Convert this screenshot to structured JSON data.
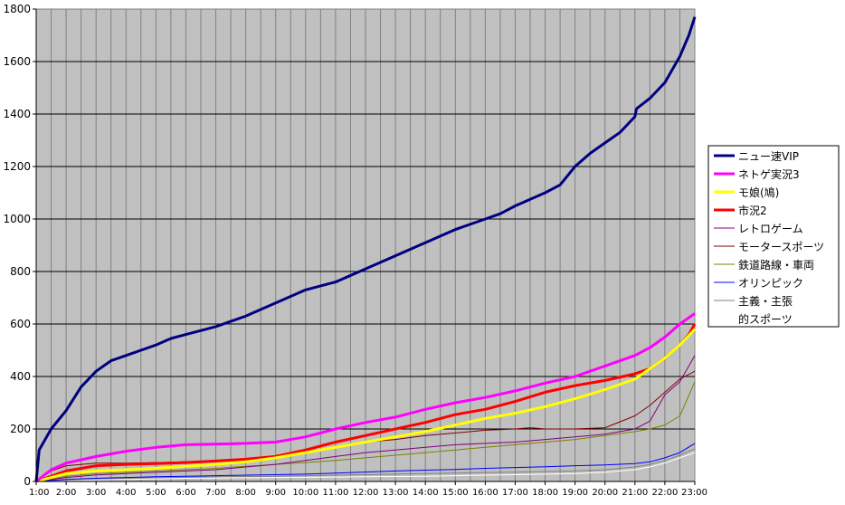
{
  "chart_data": {
    "type": "line",
    "title": "",
    "xlabel": "",
    "ylabel": "",
    "x_ticks": [
      "1:00",
      "2:00",
      "3:00",
      "4:00",
      "5:00",
      "6:00",
      "7:00",
      "8:00",
      "9:00",
      "10:00",
      "11:00",
      "12:00",
      "13:00",
      "14:00",
      "15:00",
      "16:00",
      "17:00",
      "18:00",
      "19:00",
      "20:00",
      "21:00",
      "22:00",
      "23:00"
    ],
    "x_sub_per_tick": 2,
    "xlim": [
      1,
      23
    ],
    "y_ticks": [
      0,
      200,
      400,
      600,
      800,
      1000,
      1200,
      1400,
      1600,
      1800
    ],
    "ylim": [
      0,
      1800
    ],
    "grid": true,
    "plot_background": "#c0c0c0",
    "legend_position": "right",
    "series": [
      {
        "name": "ニュー速VIP",
        "color": "#000080",
        "width": 3,
        "x": [
          1,
          1.1,
          1.5,
          2,
          2.5,
          3,
          3.5,
          4,
          4.5,
          5,
          5.5,
          6,
          7,
          8,
          9,
          10,
          11,
          12,
          13,
          14,
          15,
          16,
          16.5,
          17,
          18,
          18.5,
          19,
          19.5,
          20,
          20.5,
          21,
          21.05,
          21.5,
          22,
          22.5,
          22.8,
          23
        ],
        "y": [
          0,
          120,
          200,
          270,
          360,
          420,
          460,
          480,
          500,
          520,
          545,
          560,
          590,
          630,
          680,
          730,
          760,
          810,
          860,
          910,
          960,
          1000,
          1020,
          1050,
          1100,
          1130,
          1200,
          1250,
          1290,
          1330,
          1390,
          1420,
          1460,
          1520,
          1620,
          1700,
          1770
        ]
      },
      {
        "name": "ネトゲ実況3",
        "color": "#ff00ff",
        "width": 3,
        "x": [
          1,
          1.5,
          2,
          3,
          4,
          5,
          6,
          7,
          8,
          9,
          10,
          11,
          12,
          13,
          14,
          15,
          16,
          17,
          18,
          19,
          20,
          21,
          21.5,
          22,
          22.5,
          23
        ],
        "y": [
          0,
          45,
          70,
          95,
          115,
          130,
          140,
          142,
          145,
          150,
          170,
          200,
          225,
          245,
          275,
          300,
          320,
          345,
          375,
          400,
          440,
          480,
          510,
          550,
          600,
          640
        ]
      },
      {
        "name": "モ娘(鳩)",
        "color": "#ffff00",
        "width": 3,
        "x": [
          1,
          2,
          3,
          4,
          5,
          6,
          7,
          8,
          9,
          10,
          11,
          12,
          13,
          14,
          15,
          16,
          17,
          18,
          19,
          20,
          21,
          21.5,
          22,
          22.5,
          23
        ],
        "y": [
          0,
          30,
          40,
          45,
          50,
          58,
          65,
          75,
          90,
          110,
          130,
          150,
          170,
          190,
          215,
          240,
          260,
          285,
          315,
          350,
          390,
          430,
          470,
          520,
          580
        ]
      },
      {
        "name": "市況2",
        "color": "#ff0000",
        "width": 3,
        "x": [
          1,
          2,
          3,
          4,
          5,
          6,
          7,
          8,
          9,
          10,
          11,
          12,
          13,
          14,
          15,
          16,
          17,
          18,
          19,
          20,
          21,
          21.5,
          22,
          22.5,
          22.8,
          23
        ],
        "y": [
          0,
          40,
          60,
          65,
          68,
          72,
          78,
          85,
          95,
          120,
          150,
          175,
          200,
          225,
          255,
          275,
          305,
          340,
          365,
          385,
          410,
          430,
          470,
          520,
          560,
          600
        ]
      },
      {
        "name": "レトロゲーム",
        "color": "#800080",
        "width": 1,
        "x": [
          1,
          2,
          3,
          4,
          5,
          6,
          7,
          8,
          9,
          10,
          11,
          12,
          13,
          14,
          15,
          16,
          17,
          18,
          19,
          20,
          21,
          21.5,
          22,
          22.5,
          23
        ],
        "y": [
          0,
          15,
          25,
          30,
          35,
          40,
          45,
          55,
          65,
          80,
          95,
          110,
          120,
          130,
          140,
          145,
          150,
          160,
          170,
          180,
          200,
          230,
          330,
          380,
          480
        ]
      },
      {
        "name": "モータースポーツ",
        "color": "#800000",
        "width": 1,
        "x": [
          1,
          1.5,
          2,
          3,
          4,
          5,
          6,
          7,
          8,
          9,
          10,
          11,
          12,
          13,
          14,
          15,
          16,
          17,
          17.5,
          18,
          19,
          20,
          21,
          21.5,
          22,
          22.5,
          23
        ],
        "y": [
          0,
          40,
          60,
          70,
          70,
          72,
          75,
          80,
          85,
          95,
          115,
          130,
          150,
          160,
          175,
          185,
          195,
          200,
          205,
          200,
          200,
          205,
          250,
          290,
          340,
          390,
          420
        ]
      },
      {
        "name": "鉄道路線・車両",
        "color": "#808000",
        "width": 1,
        "x": [
          1,
          2,
          3,
          4,
          5,
          6,
          7,
          8,
          9,
          10,
          11,
          12,
          13,
          14,
          15,
          16,
          17,
          18,
          19,
          20,
          21,
          21.5,
          22,
          22.5,
          23
        ],
        "y": [
          0,
          20,
          30,
          35,
          40,
          45,
          50,
          58,
          65,
          72,
          80,
          90,
          100,
          110,
          120,
          130,
          140,
          150,
          160,
          175,
          190,
          200,
          215,
          250,
          380
        ]
      },
      {
        "name": "オリンピック",
        "color": "#0000ff",
        "width": 1,
        "x": [
          1,
          2,
          3,
          4,
          5,
          6,
          7,
          8,
          9,
          10,
          11,
          12,
          13,
          14,
          15,
          16,
          17,
          18,
          19,
          20,
          21,
          21.5,
          22,
          22.5,
          23
        ],
        "y": [
          0,
          8,
          12,
          15,
          18,
          20,
          22,
          24,
          26,
          28,
          32,
          36,
          40,
          43,
          46,
          50,
          53,
          56,
          60,
          63,
          68,
          75,
          90,
          110,
          145
        ]
      },
      {
        "name": "主義・主張",
        "color": "#808080",
        "width": 1,
        "x": [
          1,
          2,
          3,
          4,
          5,
          6,
          7,
          8,
          9,
          10,
          11,
          12,
          13,
          14,
          15,
          16,
          17,
          18,
          19,
          20,
          21,
          21.5,
          22,
          22.5,
          23
        ],
        "y": [
          0,
          6,
          10,
          12,
          14,
          16,
          18,
          19,
          20,
          22,
          24,
          26,
          28,
          30,
          32,
          34,
          36,
          38,
          40,
          45,
          55,
          65,
          80,
          100,
          125
        ]
      },
      {
        "name": "的スポーツ",
        "color": "#ffffff",
        "width": 1,
        "x": [
          1,
          2,
          3,
          4,
          5,
          6,
          7,
          8,
          9,
          10,
          11,
          12,
          13,
          14,
          15,
          16,
          17,
          18,
          19,
          20,
          21,
          21.5,
          22,
          22.5,
          23
        ],
        "y": [
          0,
          4,
          6,
          8,
          10,
          12,
          13,
          14,
          15,
          16,
          17,
          18,
          19,
          20,
          22,
          24,
          26,
          28,
          30,
          35,
          45,
          55,
          70,
          90,
          110
        ]
      }
    ]
  }
}
